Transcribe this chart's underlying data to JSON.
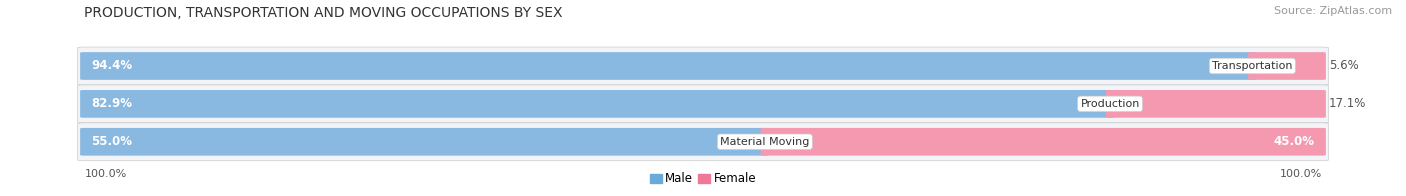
{
  "title": "PRODUCTION, TRANSPORTATION AND MOVING OCCUPATIONS BY SEX",
  "source": "Source: ZipAtlas.com",
  "categories": [
    "Transportation",
    "Production",
    "Material Moving"
  ],
  "male_pcts": [
    94.4,
    82.9,
    55.0
  ],
  "female_pcts": [
    5.6,
    17.1,
    45.0
  ],
  "male_color": "#89b8e0",
  "female_color": "#f499b0",
  "male_color_dark": "#6aaad8",
  "female_color_dark": "#ef7799",
  "row_bg": "#f2f4f7",
  "bg_color": "#ffffff",
  "title_fontsize": 10,
  "source_fontsize": 8,
  "bar_label_fontsize": 8.5,
  "category_fontsize": 8,
  "axis_label_fontsize": 8,
  "legend_fontsize": 8.5,
  "axis_left_label": "100.0%",
  "axis_right_label": "100.0%"
}
